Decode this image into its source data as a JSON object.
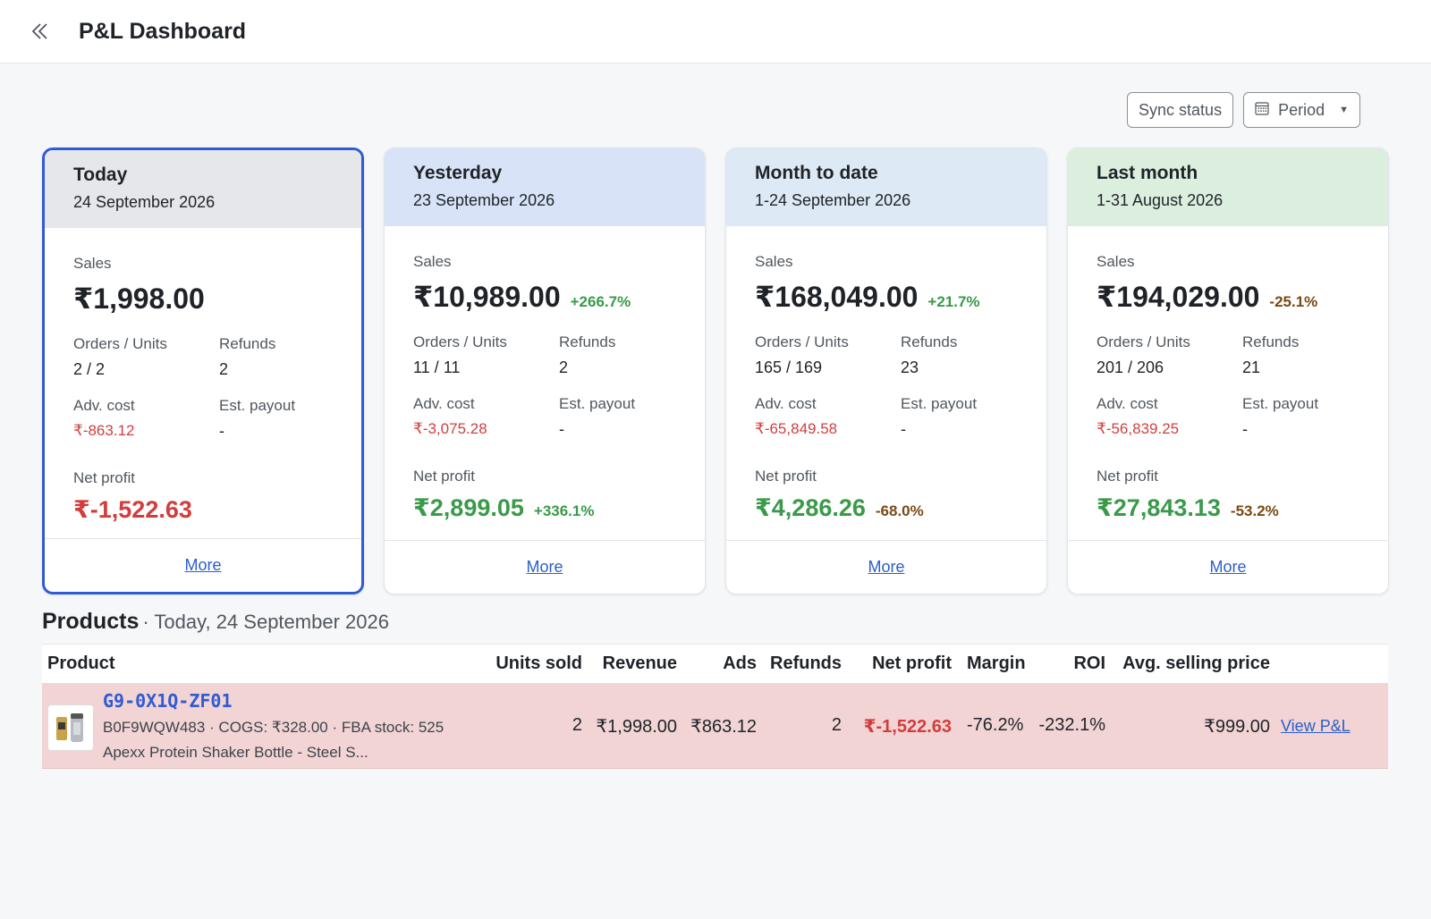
{
  "header": {
    "title": "P&L Dashboard"
  },
  "toolbar": {
    "sync_label": "Sync status",
    "period_label": "Period"
  },
  "common": {
    "sales": "Sales",
    "orders_units": "Orders / Units",
    "refunds": "Refunds",
    "adv_cost": "Adv. cost",
    "est_payout": "Est. payout",
    "net_profit": "Net profit",
    "more": "More"
  },
  "cards": [
    {
      "label": "Today",
      "date": "24 September 2026",
      "sales": "₹1,998.00",
      "sales_change": "",
      "orders_units": "2 / 2",
      "refunds": "2",
      "adv_cost": "₹-863.12",
      "est_payout": "-",
      "net_profit": "₹-1,522.63",
      "net_change": ""
    },
    {
      "label": "Yesterday",
      "date": "23 September 2026",
      "sales": "₹10,989.00",
      "sales_change": "+266.7%",
      "orders_units": "11 / 11",
      "refunds": "2",
      "adv_cost": "₹-3,075.28",
      "est_payout": "-",
      "net_profit": "₹2,899.05",
      "net_change": "+336.1%"
    },
    {
      "label": "Month to date",
      "date": "1-24 September 2026",
      "sales": "₹168,049.00",
      "sales_change": "+21.7%",
      "orders_units": "165 / 169",
      "refunds": "23",
      "adv_cost": "₹-65,849.58",
      "est_payout": "-",
      "net_profit": "₹4,286.26",
      "net_change": "-68.0%"
    },
    {
      "label": "Last month",
      "date": "1-31 August 2026",
      "sales": "₹194,029.00",
      "sales_change": "-25.1%",
      "orders_units": "201 / 206",
      "refunds": "21",
      "adv_cost": "₹-56,839.25",
      "est_payout": "-",
      "net_profit": "₹27,843.13",
      "net_change": "-53.2%"
    }
  ],
  "products": {
    "title": "Products",
    "subtitle": "· Today, 24 September 2026",
    "columns": [
      "Product",
      "Units sold",
      "Revenue",
      "Ads",
      "Refunds",
      "Net profit",
      "Margin",
      "ROI",
      "Avg. selling price"
    ],
    "rows": [
      {
        "sku": "G9-0X1Q-ZF01",
        "meta": "B0F9WQW483 · COGS: ₹328.00 · FBA stock: 525",
        "name": "Apexx Protein Shaker Bottle - Steel S...",
        "units_sold": "2",
        "revenue": "₹1,998.00",
        "ads": "₹863.12",
        "refunds": "2",
        "net_profit": "₹-1,522.63",
        "margin": "-76.2%",
        "roi": "-232.1%",
        "avg_price": "₹999.00",
        "link": "View P&L"
      }
    ]
  }
}
